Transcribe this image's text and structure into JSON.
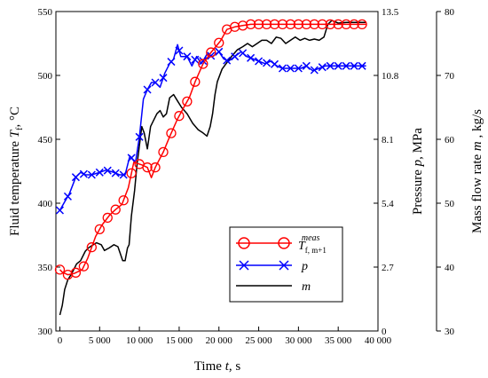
{
  "chart_data": {
    "type": "line",
    "xlabel": "Time t, s",
    "x_ticks": [
      0,
      5000,
      10000,
      15000,
      20000,
      25000,
      30000,
      35000,
      40000
    ],
    "x_tick_labels": [
      "0",
      "5 000",
      "10 000",
      "15 000",
      "20 000",
      "25 000",
      "30 000",
      "35 000",
      "40 000"
    ],
    "xlim": [
      -500,
      40000
    ],
    "axes": {
      "temperature": {
        "label": "Fluid temperature T_f, °C",
        "ylim": [
          300,
          550
        ],
        "ticks": [
          300,
          350,
          400,
          450,
          500,
          550
        ]
      },
      "pressure": {
        "label": "Pressure p, MPa",
        "ylim": [
          0,
          13.5
        ],
        "ticks": [
          "0",
          "2.7",
          "5.4",
          "8.1",
          "10.8",
          "13.5"
        ]
      },
      "mass_flow": {
        "label": "Mass flow rate m , kg/s",
        "ylim": [
          30,
          80
        ],
        "ticks": [
          30,
          40,
          50,
          60,
          70,
          80
        ]
      }
    },
    "legend": {
      "placement": "bottom-right"
    },
    "series": [
      {
        "name": "T_f,m+1^meas",
        "axis": "temperature",
        "color": "#ff0000",
        "marker": "circle",
        "points": [
          [
            0,
            348
          ],
          [
            300,
            346
          ],
          [
            1000,
            344
          ],
          [
            1800,
            345
          ],
          [
            2800,
            348
          ],
          [
            3500,
            357
          ],
          [
            4500,
            374
          ],
          [
            5300,
            383
          ],
          [
            6300,
            391
          ],
          [
            7000,
            395
          ],
          [
            7800,
            399
          ],
          [
            8600,
            412
          ],
          [
            9300,
            432
          ],
          [
            10300,
            430
          ],
          [
            11000,
            428
          ],
          [
            11500,
            420
          ],
          [
            12000,
            428
          ],
          [
            13000,
            440
          ],
          [
            13800,
            452
          ],
          [
            14800,
            466
          ],
          [
            15500,
            474
          ],
          [
            16300,
            483
          ],
          [
            17000,
            495
          ],
          [
            18000,
            509
          ],
          [
            19000,
            518
          ],
          [
            20200,
            527
          ],
          [
            21000,
            536
          ],
          [
            22000,
            538
          ],
          [
            23000,
            539
          ],
          [
            24000,
            540
          ],
          [
            25000,
            540
          ],
          [
            26000,
            540
          ],
          [
            27000,
            540
          ],
          [
            28000,
            540
          ],
          [
            29000,
            540
          ],
          [
            30000,
            540
          ],
          [
            31000,
            540
          ],
          [
            32000,
            540
          ],
          [
            33000,
            540
          ],
          [
            34000,
            540
          ],
          [
            35000,
            540
          ],
          [
            36000,
            540
          ],
          [
            37000,
            540
          ],
          [
            38500,
            540
          ]
        ],
        "marker_x": [
          0,
          1000,
          2000,
          3000,
          4000,
          5000,
          6000,
          7000,
          8000,
          9000,
          10000,
          11000,
          12000,
          13000,
          14000,
          15000,
          16000,
          17000,
          18000,
          19000,
          20000,
          21000,
          22000,
          23000,
          24000,
          25000,
          26000,
          27000,
          28000,
          29000,
          30000,
          31000,
          32000,
          33000,
          34000,
          35000,
          36000,
          37000,
          38000
        ]
      },
      {
        "name": "p",
        "axis": "pressure",
        "color": "#0000ff",
        "marker": "x",
        "points": [
          [
            0,
            5.1
          ],
          [
            500,
            5.4
          ],
          [
            1200,
            5.8
          ],
          [
            2000,
            6.5
          ],
          [
            2600,
            6.7
          ],
          [
            3200,
            6.6
          ],
          [
            4000,
            6.6
          ],
          [
            5000,
            6.7
          ],
          [
            5800,
            6.8
          ],
          [
            6800,
            6.7
          ],
          [
            7500,
            6.6
          ],
          [
            8200,
            6.6
          ],
          [
            8800,
            7.4
          ],
          [
            9500,
            7.1
          ],
          [
            10000,
            8.2
          ],
          [
            10500,
            9.8
          ],
          [
            11000,
            10.2
          ],
          [
            11500,
            10.5
          ],
          [
            12000,
            10.5
          ],
          [
            12600,
            10.3
          ],
          [
            13200,
            10.9
          ],
          [
            13800,
            11.3
          ],
          [
            14300,
            11.5
          ],
          [
            14800,
            12.1
          ],
          [
            15200,
            11.6
          ],
          [
            16000,
            11.6
          ],
          [
            16600,
            11.2
          ],
          [
            17200,
            11.6
          ],
          [
            17800,
            11.3
          ],
          [
            18500,
            11.7
          ],
          [
            19200,
            11.6
          ],
          [
            20000,
            11.8
          ],
          [
            20600,
            11.5
          ],
          [
            21200,
            11.4
          ],
          [
            22000,
            11.6
          ],
          [
            22800,
            11.8
          ],
          [
            23500,
            11.6
          ],
          [
            24300,
            11.5
          ],
          [
            25000,
            11.4
          ],
          [
            25800,
            11.3
          ],
          [
            26500,
            11.4
          ],
          [
            27300,
            11.2
          ],
          [
            28000,
            11.1
          ],
          [
            28800,
            11.1
          ],
          [
            29600,
            11.1
          ],
          [
            30300,
            11.1
          ],
          [
            31000,
            11.2
          ],
          [
            31800,
            11.0
          ],
          [
            32600,
            11.1
          ],
          [
            33400,
            11.2
          ],
          [
            34200,
            11.2
          ],
          [
            35000,
            11.2
          ],
          [
            36000,
            11.2
          ],
          [
            37000,
            11.2
          ],
          [
            38500,
            11.2
          ]
        ],
        "marker_x": [
          0,
          1000,
          2000,
          3000,
          4000,
          5000,
          6000,
          7000,
          8000,
          9000,
          10000,
          11000,
          12000,
          13000,
          14000,
          15000,
          16000,
          17000,
          18000,
          19000,
          20000,
          21000,
          22000,
          23000,
          24000,
          25000,
          26000,
          27000,
          28000,
          29000,
          30000,
          31000,
          32000,
          33000,
          34000,
          35000,
          36000,
          37000,
          38000
        ]
      },
      {
        "name": "m",
        "axis": "mass_flow",
        "color": "#000000",
        "marker": "none",
        "points": [
          [
            0,
            32.5
          ],
          [
            300,
            34
          ],
          [
            600,
            36.5
          ],
          [
            1000,
            38
          ],
          [
            1500,
            39
          ],
          [
            2100,
            40.5
          ],
          [
            2600,
            41
          ],
          [
            3200,
            42.5
          ],
          [
            3600,
            43
          ],
          [
            4200,
            43.5
          ],
          [
            4600,
            43.8
          ],
          [
            5200,
            43.5
          ],
          [
            5600,
            42.6
          ],
          [
            6200,
            43
          ],
          [
            6800,
            43.5
          ],
          [
            7300,
            43.2
          ],
          [
            7900,
            41
          ],
          [
            8200,
            41
          ],
          [
            8500,
            43
          ],
          [
            8700,
            43.5
          ],
          [
            9000,
            48
          ],
          [
            9400,
            52
          ],
          [
            9700,
            56
          ],
          [
            10000,
            59
          ],
          [
            10300,
            62
          ],
          [
            10600,
            61
          ],
          [
            11000,
            58.5
          ],
          [
            11400,
            62
          ],
          [
            11800,
            63
          ],
          [
            12200,
            64
          ],
          [
            12600,
            64.5
          ],
          [
            13000,
            63.5
          ],
          [
            13400,
            64
          ],
          [
            13800,
            66.5
          ],
          [
            14300,
            67
          ],
          [
            14800,
            66
          ],
          [
            15300,
            65
          ],
          [
            16000,
            64
          ],
          [
            16700,
            62.5
          ],
          [
            17400,
            61.5
          ],
          [
            18000,
            61
          ],
          [
            18500,
            60.5
          ],
          [
            18900,
            62
          ],
          [
            19200,
            64
          ],
          [
            19500,
            67
          ],
          [
            19800,
            69
          ],
          [
            20400,
            71
          ],
          [
            21000,
            72
          ],
          [
            21600,
            73
          ],
          [
            22300,
            74
          ],
          [
            23000,
            74.5
          ],
          [
            23600,
            75
          ],
          [
            24200,
            74.5
          ],
          [
            24800,
            75
          ],
          [
            25400,
            75.5
          ],
          [
            26000,
            75.5
          ],
          [
            26600,
            75
          ],
          [
            27200,
            76
          ],
          [
            27800,
            75.8
          ],
          [
            28400,
            75
          ],
          [
            29000,
            75.5
          ],
          [
            29600,
            76
          ],
          [
            30200,
            75.5
          ],
          [
            30800,
            75.8
          ],
          [
            31400,
            75.5
          ],
          [
            32000,
            75.7
          ],
          [
            32600,
            75.5
          ],
          [
            33200,
            76
          ],
          [
            33700,
            78
          ],
          [
            34200,
            78.6
          ],
          [
            35000,
            78.2
          ],
          [
            36000,
            78.3
          ],
          [
            37000,
            78.3
          ],
          [
            38500,
            78.3
          ]
        ]
      }
    ]
  }
}
